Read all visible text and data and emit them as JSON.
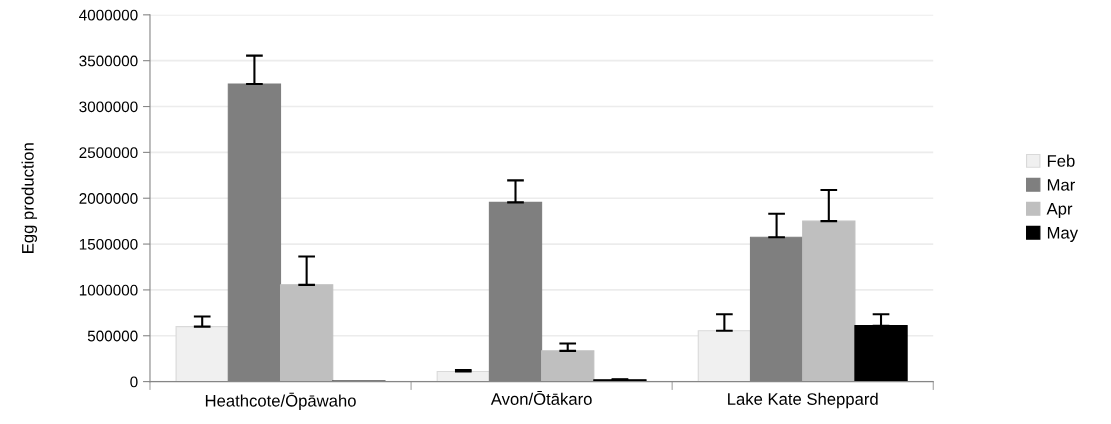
{
  "chart_data": {
    "type": "bar",
    "ylabel": "Egg production",
    "categories": [
      "Heathcote/Ōpāwaho",
      "Avon/Ōtākaro",
      "Lake Kate Sheppard"
    ],
    "series": [
      {
        "name": "Feb",
        "color": "#f0f0f0",
        "values": [
          600000,
          110000,
          555000
        ],
        "errors": [
          [
            600000,
            710000
          ],
          [
            110000,
            125000
          ],
          [
            555000,
            735000
          ]
        ]
      },
      {
        "name": "Mar",
        "color": "#7f7f7f",
        "values": [
          3245000,
          1955000,
          1575000
        ],
        "errors": [
          [
            3245000,
            3555000
          ],
          [
            1955000,
            2195000
          ],
          [
            1575000,
            1830000
          ]
        ]
      },
      {
        "name": "Apr",
        "color": "#bfbfbf",
        "values": [
          1055000,
          335000,
          1750000
        ],
        "errors": [
          [
            1055000,
            1365000
          ],
          [
            335000,
            415000
          ],
          [
            1750000,
            2090000
          ]
        ]
      },
      {
        "name": "May",
        "color": "#000000",
        "values": [
          5000,
          20000,
          610000
        ],
        "errors": [
          null,
          [
            20000,
            25000
          ],
          [
            610000,
            735000
          ]
        ]
      }
    ],
    "ylim": [
      0,
      4000000
    ],
    "yticks": [
      0,
      500000,
      1000000,
      1500000,
      2000000,
      2500000,
      3000000,
      3500000,
      4000000
    ],
    "grid": "y",
    "legend": "right"
  }
}
